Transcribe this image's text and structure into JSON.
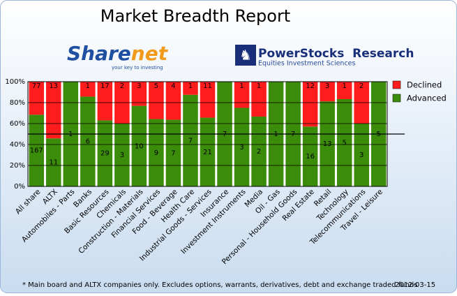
{
  "header": {
    "sharenet": {
      "part1": "Share",
      "part2": "net",
      "tagline": "your key to investing"
    },
    "powerstocks": {
      "name": "PowerStocks  Research",
      "tagline": "Equities Investment Sciences"
    }
  },
  "chart_data": {
    "type": "stacked_percent",
    "title": "Market Breadth Report",
    "categories": [
      "All share",
      "ALTX",
      "Automobiles - Parts",
      "Banks",
      "Basic Resources",
      "Chemicals",
      "Construction - Materials",
      "Financial Services",
      "Food - Beverage",
      "Health Care",
      "Industrial Goods - Services",
      "Insurance",
      "Investment Instruments",
      "Media",
      "Oil - Gas",
      "Personal - Household Goods",
      "Real Estate",
      "Retail",
      "Technology",
      "Telecommunications",
      "Travel - Leisure"
    ],
    "series": [
      {
        "name": "Advanced",
        "color": "#3c8c0c",
        "values": [
          167,
          11,
          1,
          6,
          29,
          3,
          10,
          9,
          7,
          7,
          21,
          7,
          3,
          2,
          1,
          7,
          16,
          13,
          5,
          3,
          5
        ]
      },
      {
        "name": "Declined",
        "color": "#ff1c1c",
        "values": [
          77,
          13,
          0,
          1,
          17,
          2,
          3,
          5,
          4,
          1,
          11,
          0,
          1,
          1,
          0,
          0,
          12,
          3,
          1,
          2,
          0
        ]
      }
    ],
    "ylim": [
      0,
      100
    ],
    "yticks": [
      {
        "value": 0,
        "label": "0%"
      },
      {
        "value": 20,
        "label": "20%"
      },
      {
        "value": 40,
        "label": "40%"
      },
      {
        "value": 60,
        "label": "60%"
      },
      {
        "value": 80,
        "label": "80%"
      },
      {
        "value": 100,
        "label": "100%"
      }
    ],
    "grid": true,
    "reference_line": 50,
    "legend": "right",
    "footnote": "* Main board and ALTX companies only. Excludes options, warrants, derivatives, debt and exchange traded funds",
    "date": "2012-03-15"
  }
}
